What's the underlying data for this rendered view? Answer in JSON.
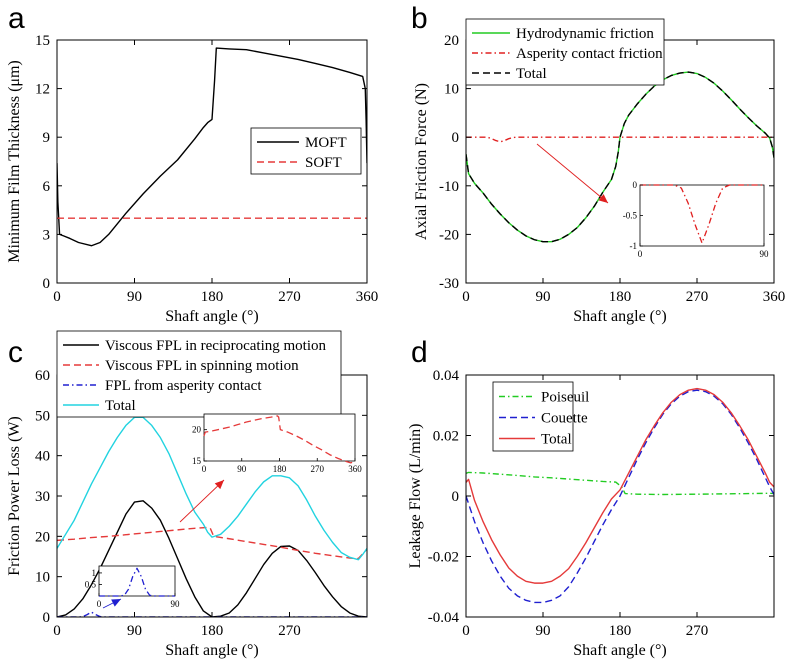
{
  "figure": {
    "panel_letters": [
      "a",
      "b",
      "c",
      "d"
    ]
  },
  "chart_data": [
    {
      "id": "a",
      "type": "line",
      "xlabel": "Shaft angle (°)",
      "ylabel": "Minimum Film Thickness (μm)",
      "xlim": [
        0,
        360
      ],
      "ylim": [
        0,
        15
      ],
      "xticks": [
        0,
        90,
        180,
        270,
        360
      ],
      "yticks": [
        0,
        3,
        6,
        9,
        12,
        15
      ],
      "legend_position": "center-right",
      "series": [
        {
          "name": "MOFT",
          "color": "#000000",
          "dash": "solid",
          "x": [
            0,
            1,
            3,
            8,
            15,
            25,
            40,
            50,
            60,
            80,
            100,
            120,
            140,
            160,
            170,
            175,
            180,
            183,
            185,
            200,
            220,
            240,
            260,
            280,
            300,
            320,
            340,
            355,
            358,
            359,
            360
          ],
          "y": [
            7.4,
            5.0,
            3.0,
            2.9,
            2.75,
            2.5,
            2.3,
            2.5,
            3.0,
            4.3,
            5.5,
            6.6,
            7.6,
            8.9,
            9.6,
            9.9,
            10.1,
            12.5,
            14.5,
            14.45,
            14.4,
            14.2,
            14.0,
            13.8,
            13.55,
            13.3,
            13.0,
            12.75,
            12.0,
            10.0,
            7.4
          ]
        },
        {
          "name": "SOFT",
          "color": "#e53a3a",
          "dash": "dashed",
          "x": [
            0,
            360
          ],
          "y": [
            4.0,
            4.0
          ]
        }
      ]
    },
    {
      "id": "b",
      "type": "line",
      "xlabel": "Shaft angle (°)",
      "ylabel": "Axial Friction Force (N)",
      "xlim": [
        0,
        360
      ],
      "ylim": [
        -30,
        20
      ],
      "xticks": [
        0,
        90,
        180,
        270,
        360
      ],
      "yticks": [
        -30,
        -20,
        -10,
        0,
        10,
        20
      ],
      "legend_position": "top",
      "series": [
        {
          "name": "Hydrodynamic friction",
          "color": "#22cc22",
          "dash": "solid",
          "x": [
            0,
            3,
            10,
            20,
            30,
            40,
            50,
            60,
            70,
            80,
            90,
            100,
            110,
            120,
            130,
            140,
            150,
            160,
            170,
            175,
            178,
            180,
            185,
            190,
            200,
            210,
            220,
            230,
            240,
            250,
            260,
            270,
            280,
            290,
            300,
            310,
            320,
            330,
            340,
            350,
            355,
            358,
            360
          ],
          "y": [
            -3.5,
            -7.5,
            -9.5,
            -11.5,
            -13.8,
            -15.8,
            -17.6,
            -19.1,
            -20.3,
            -21.1,
            -21.5,
            -21.5,
            -21.0,
            -20.0,
            -18.6,
            -16.6,
            -14.2,
            -11.3,
            -8.7,
            -6.0,
            -3.0,
            0.0,
            2.8,
            4.5,
            6.8,
            8.8,
            10.5,
            11.8,
            12.7,
            13.2,
            13.4,
            13.1,
            12.3,
            11.1,
            9.5,
            7.7,
            5.8,
            4.0,
            2.3,
            0.8,
            -0.2,
            -2.0,
            -4.2
          ]
        },
        {
          "name": "Asperity contact friction",
          "color": "#e02020",
          "dash": "dashdot",
          "x": [
            0,
            25,
            30,
            35,
            40,
            45,
            50,
            55,
            60,
            360
          ],
          "y": [
            0,
            0,
            -0.3,
            -0.7,
            -0.95,
            -0.7,
            -0.3,
            -0.05,
            0,
            0
          ]
        },
        {
          "name": "Total",
          "color": "#000000",
          "dash": "dashed",
          "x": [
            0,
            3,
            10,
            20,
            30,
            40,
            50,
            60,
            70,
            80,
            90,
            100,
            110,
            120,
            130,
            140,
            150,
            160,
            170,
            175,
            178,
            180,
            185,
            190,
            200,
            210,
            220,
            230,
            240,
            250,
            260,
            270,
            280,
            290,
            300,
            310,
            320,
            330,
            340,
            350,
            355,
            358,
            360
          ],
          "y": [
            -3.5,
            -7.5,
            -9.5,
            -11.5,
            -13.8,
            -15.8,
            -17.6,
            -19.1,
            -20.3,
            -21.1,
            -21.5,
            -21.5,
            -21.0,
            -20.0,
            -18.6,
            -16.6,
            -14.2,
            -11.3,
            -8.7,
            -6.0,
            -3.0,
            0.0,
            2.8,
            4.5,
            6.8,
            8.8,
            10.5,
            11.8,
            12.7,
            13.2,
            13.4,
            13.1,
            12.3,
            11.1,
            9.5,
            7.7,
            5.8,
            4.0,
            2.3,
            0.8,
            -0.2,
            -2.0,
            -4.2
          ]
        }
      ],
      "inset": {
        "xlim": [
          0,
          90
        ],
        "ylim": [
          -1,
          0
        ],
        "xticks": [
          0,
          90
        ],
        "ytick_labels": [
          "0",
          "-0.5",
          "-1"
        ],
        "yticks": [
          0,
          -0.5,
          -1
        ],
        "series": [
          {
            "name": "Asperity contact friction",
            "color": "#e02020",
            "dash": "dashdot",
            "x": [
              0,
              25,
              30,
              35,
              40,
              45,
              50,
              55,
              60,
              65,
              70,
              90
            ],
            "y": [
              0,
              0,
              -0.05,
              -0.3,
              -0.65,
              -0.95,
              -0.65,
              -0.3,
              -0.05,
              0,
              0,
              0
            ]
          }
        ]
      }
    },
    {
      "id": "c",
      "type": "line",
      "xlabel": "Shaft angle (°)",
      "ylabel": "Friction Power Loss (W)",
      "xlim": [
        0,
        360
      ],
      "ylim": [
        0,
        60
      ],
      "xticks": [
        0,
        90,
        180,
        270
      ],
      "yticks": [
        0,
        10,
        20,
        30,
        40,
        50,
        60
      ],
      "legend_position": "top-left",
      "series": [
        {
          "name": "Viscous FPL in reciprocating motion",
          "color": "#000000",
          "dash": "solid",
          "x": [
            0,
            10,
            20,
            30,
            40,
            50,
            60,
            70,
            80,
            90,
            100,
            110,
            120,
            130,
            140,
            150,
            160,
            170,
            180,
            190,
            200,
            210,
            220,
            230,
            240,
            250,
            260,
            270,
            280,
            290,
            300,
            310,
            320,
            330,
            340,
            350,
            360
          ],
          "y": [
            0,
            0.5,
            2.0,
            4.5,
            8.0,
            12.0,
            16.5,
            21.0,
            25.5,
            28.5,
            28.8,
            27.0,
            24.0,
            19.5,
            14.5,
            9.5,
            5.0,
            1.5,
            0,
            0.2,
            1.0,
            3.0,
            6.0,
            9.5,
            13.0,
            15.8,
            17.5,
            17.6,
            16.5,
            14.0,
            11.0,
            7.8,
            5.0,
            2.6,
            1.0,
            0.2,
            0
          ]
        },
        {
          "name": "Viscous FPL in spinning motion",
          "color": "#e53a3a",
          "dash": "dashed",
          "x": [
            0,
            20,
            40,
            60,
            80,
            100,
            120,
            140,
            160,
            175,
            178,
            182,
            200,
            220,
            240,
            260,
            280,
            300,
            320,
            340,
            350,
            360
          ],
          "y": [
            19.0,
            19.3,
            19.7,
            20.0,
            20.4,
            20.8,
            21.2,
            21.6,
            22.0,
            22.2,
            22.0,
            20.0,
            19.4,
            18.7,
            18.0,
            17.3,
            16.5,
            15.8,
            15.2,
            14.6,
            14.5,
            16.8
          ]
        },
        {
          "name": "FPL from asperity contact",
          "color": "#2020d0",
          "dash": "dashdot",
          "x": [
            0,
            25,
            30,
            35,
            40,
            45,
            50,
            55,
            60,
            360
          ],
          "y": [
            0,
            0,
            0.1,
            0.6,
            1.2,
            0.6,
            0.1,
            0,
            0,
            0
          ]
        },
        {
          "name": "Total",
          "color": "#22d3e0",
          "dash": "solid",
          "x": [
            0,
            10,
            20,
            30,
            40,
            50,
            60,
            70,
            80,
            90,
            100,
            110,
            120,
            130,
            140,
            150,
            160,
            170,
            175,
            180,
            190,
            200,
            210,
            220,
            230,
            240,
            250,
            260,
            270,
            280,
            290,
            300,
            310,
            320,
            330,
            340,
            350,
            355,
            360
          ],
          "y": [
            17.0,
            20.5,
            24.0,
            28.5,
            33.0,
            37.0,
            41.0,
            44.5,
            47.5,
            49.5,
            49.5,
            47.5,
            44.5,
            40.5,
            35.5,
            30.5,
            26.0,
            23.0,
            21.0,
            19.8,
            20.5,
            22.5,
            25.0,
            28.0,
            31.0,
            33.5,
            35.0,
            35.0,
            34.5,
            32.5,
            29.0,
            25.0,
            21.5,
            18.5,
            16.0,
            14.8,
            14.2,
            15.5,
            17.0
          ]
        }
      ],
      "inset_spinning": {
        "xlim": [
          0,
          360
        ],
        "ylim": [
          15,
          22.5
        ],
        "xticks": [
          0,
          90,
          180,
          270,
          360
        ],
        "yticks": [
          15,
          20
        ],
        "series": [
          {
            "name": "Viscous FPL in spinning motion",
            "color": "#e53a3a",
            "dash": "dashed",
            "x": [
              0,
              3,
              20,
              40,
              60,
              80,
              100,
              120,
              140,
              160,
              175,
              178,
              182,
              200,
              220,
              240,
              260,
              280,
              300,
              320,
              340,
              350,
              360
            ],
            "y": [
              19.0,
              19.6,
              19.8,
              20.1,
              20.4,
              20.8,
              21.2,
              21.5,
              21.8,
              22.0,
              22.2,
              22.0,
              20.0,
              19.6,
              19.0,
              18.3,
              17.5,
              16.8,
              16.0,
              15.4,
              14.9,
              14.7,
              15.0
            ]
          }
        ]
      },
      "inset_asperity": {
        "xlim": [
          0,
          90
        ],
        "ylim": [
          0,
          1.3
        ],
        "xticks": [
          0,
          90
        ],
        "yticks": [
          0.5,
          1
        ],
        "series": [
          {
            "name": "FPL from asperity contact",
            "color": "#2020d0",
            "dash": "dashdot",
            "x": [
              0,
              25,
              30,
              35,
              40,
              45,
              50,
              55,
              60,
              65,
              90
            ],
            "y": [
              0,
              0,
              0.03,
              0.3,
              0.85,
              1.2,
              0.85,
              0.3,
              0.03,
              0,
              0
            ]
          }
        ]
      }
    },
    {
      "id": "d",
      "type": "line",
      "xlabel": "Shaft angle (°)",
      "ylabel": "Leakage Flow (L/min)",
      "xlim": [
        0,
        360
      ],
      "ylim": [
        -0.04,
        0.04
      ],
      "xticks": [
        0,
        90,
        180,
        270
      ],
      "yticks": [
        -0.04,
        -0.02,
        0,
        0.02,
        0.04
      ],
      "ytick_labels": [
        "-0.04",
        "-0.02",
        "0",
        "0.02",
        "0.04"
      ],
      "legend_position": "top-left",
      "series": [
        {
          "name": "Poiseuil",
          "color": "#22cc22",
          "dash": "dashdot",
          "x": [
            0,
            3,
            20,
            40,
            60,
            80,
            100,
            120,
            140,
            160,
            175,
            182,
            186,
            200,
            230,
            270,
            300,
            330,
            355,
            360
          ],
          "y": [
            0.0075,
            0.0078,
            0.0076,
            0.0072,
            0.0068,
            0.0063,
            0.006,
            0.0056,
            0.0052,
            0.0048,
            0.0046,
            0.003,
            0.0008,
            0.0006,
            0.0005,
            0.0006,
            0.0007,
            0.0008,
            0.0009,
            0.0008
          ]
        },
        {
          "name": "Couette",
          "color": "#2020d0",
          "dash": "dashed",
          "x": [
            0,
            10,
            20,
            30,
            40,
            50,
            60,
            70,
            80,
            90,
            100,
            110,
            120,
            130,
            140,
            150,
            160,
            170,
            180,
            190,
            200,
            210,
            220,
            230,
            240,
            250,
            260,
            270,
            280,
            290,
            300,
            310,
            320,
            330,
            340,
            350,
            355,
            360
          ],
          "y": [
            0.0,
            -0.0085,
            -0.0155,
            -0.0215,
            -0.0265,
            -0.0305,
            -0.033,
            -0.0345,
            -0.0352,
            -0.0352,
            -0.0345,
            -0.033,
            -0.03,
            -0.0255,
            -0.0205,
            -0.015,
            -0.0095,
            -0.0045,
            0.0,
            0.006,
            0.012,
            0.0175,
            0.0225,
            0.027,
            0.0305,
            0.033,
            0.0345,
            0.035,
            0.0345,
            0.033,
            0.0305,
            0.027,
            0.0225,
            0.0175,
            0.012,
            0.006,
            0.003,
            0.0005
          ]
        },
        {
          "name": "Total",
          "color": "#e53a3a",
          "dash": "solid",
          "x": [
            0,
            3,
            10,
            20,
            30,
            40,
            50,
            60,
            70,
            80,
            90,
            100,
            110,
            120,
            130,
            140,
            150,
            160,
            170,
            180,
            190,
            200,
            210,
            220,
            230,
            240,
            250,
            260,
            270,
            280,
            290,
            300,
            310,
            320,
            330,
            340,
            350,
            355,
            360
          ],
          "y": [
            0.0045,
            0.0055,
            -0.0015,
            -0.0085,
            -0.0145,
            -0.0195,
            -0.0238,
            -0.0265,
            -0.0282,
            -0.0288,
            -0.0288,
            -0.0282,
            -0.0265,
            -0.024,
            -0.02,
            -0.0155,
            -0.0105,
            -0.0055,
            -0.001,
            0.002,
            0.0075,
            0.013,
            0.0185,
            0.0232,
            0.0275,
            0.031,
            0.0335,
            0.035,
            0.0355,
            0.035,
            0.0335,
            0.031,
            0.0275,
            0.0232,
            0.0185,
            0.013,
            0.0075,
            0.0045,
            0.003
          ]
        }
      ]
    }
  ]
}
